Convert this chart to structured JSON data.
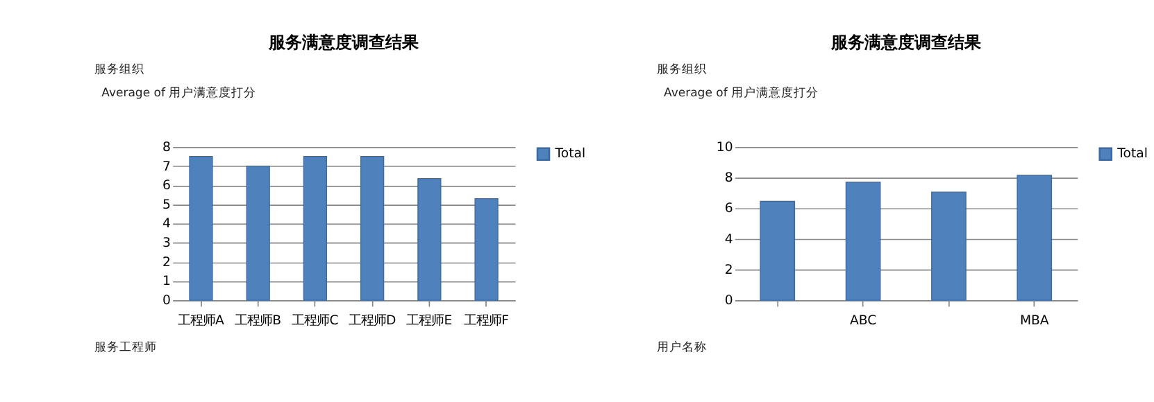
{
  "chart_data": [
    {
      "type": "bar",
      "title": "服务满意度调查结果",
      "categories": [
        "工程师A",
        "工程师B",
        "工程师C",
        "工程师D",
        "工程师E",
        "工程师F"
      ],
      "series": [
        {
          "name": "Total",
          "color": "#4f81bd",
          "values": [
            7.5,
            7.0,
            7.5,
            7.5,
            6.35,
            5.3
          ]
        }
      ],
      "ylim": [
        0,
        8
      ],
      "yticks": [
        0,
        1,
        2,
        3,
        4,
        5,
        6,
        7,
        8
      ],
      "grid": "y",
      "legend": "right",
      "annotations": [
        "服务组织",
        "Average of 用户满意度打分",
        "服务工程师"
      ]
    },
    {
      "type": "bar",
      "title": "服务满意度调查结果",
      "categories": [
        null,
        "ABC",
        null,
        "MBA"
      ],
      "series": [
        {
          "name": "Total",
          "color": "#4f81bd",
          "values": [
            6.45,
            7.7,
            7.05,
            8.15
          ]
        }
      ],
      "ylim": [
        0,
        10
      ],
      "yticks": [
        0,
        2,
        4,
        6,
        8,
        10
      ],
      "grid": "y",
      "legend": "right",
      "annotations": [
        "服务组织",
        "Average of 用户满意度打分",
        "用户名称"
      ]
    }
  ]
}
